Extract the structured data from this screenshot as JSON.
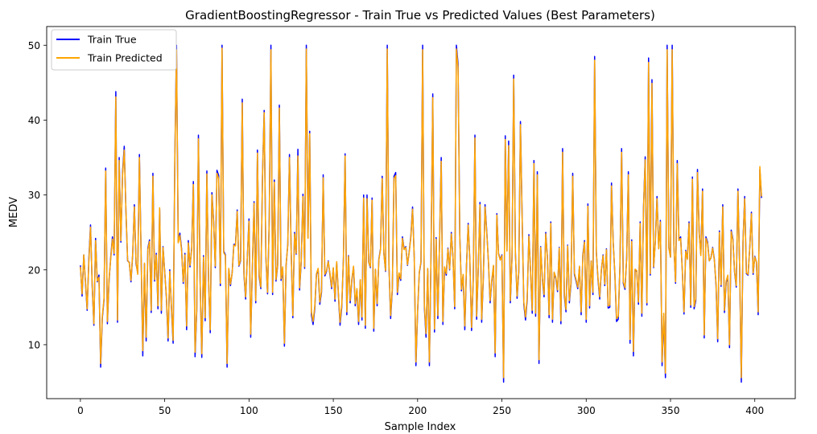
{
  "chart_data": {
    "type": "line",
    "title": "GradientBoostingRegressor - Train True vs Predicted Values (Best Parameters)",
    "xlabel": "Sample Index",
    "ylabel": "MEDV",
    "xlim": [
      -20,
      424
    ],
    "ylim": [
      2.8,
      52.5
    ],
    "xticks": [
      0,
      50,
      100,
      150,
      200,
      250,
      300,
      350,
      400
    ],
    "yticks": [
      10,
      20,
      30,
      40,
      50
    ],
    "grid": false,
    "legend_position": "top-left",
    "series": [
      {
        "name": "Train True",
        "color": "#0000ff",
        "values": [
          20.6,
          16.5,
          22.0,
          18.3,
          14.6,
          21.4,
          26.0,
          17.8,
          12.6,
          24.2,
          18.4,
          19.3,
          7.0,
          13.6,
          16.0,
          33.6,
          12.8,
          18.6,
          21.7,
          24.4,
          22.0,
          43.8,
          13.0,
          35.0,
          23.7,
          33.0,
          36.5,
          27.9,
          21.2,
          21.0,
          18.4,
          22.0,
          28.7,
          20.8,
          19.6,
          35.4,
          22.0,
          8.5,
          20.8,
          10.5,
          22.9,
          24.0,
          14.3,
          32.9,
          18.5,
          22.2,
          14.8,
          28.1,
          14.2,
          23.1,
          19.8,
          16.3,
          10.5,
          20.0,
          14.8,
          10.2,
          34.9,
          50.0,
          23.8,
          24.9,
          22.8,
          18.2,
          22.2,
          12.0,
          23.9,
          20.4,
          22.9,
          31.8,
          8.4,
          14.5,
          38.0,
          18.5,
          8.3,
          21.9,
          13.2,
          33.2,
          18.7,
          11.6,
          30.3,
          26.6,
          20.3,
          33.3,
          32.6,
          17.9,
          50.0,
          22.5,
          22.0,
          7.0,
          20.1,
          17.9,
          19.6,
          23.4,
          23.4,
          28.0,
          20.5,
          21.2,
          42.8,
          19.4,
          16.1,
          21.7,
          26.8,
          11.0,
          20.3,
          29.1,
          15.6,
          36.0,
          19.1,
          17.5,
          32.6,
          41.3,
          21.7,
          16.8,
          26.7,
          50.0,
          16.7,
          32.0,
          18.5,
          20.6,
          42.0,
          18.6,
          20.2,
          9.8,
          20.6,
          23.4,
          35.4,
          22.6,
          13.6,
          25.0,
          22.1,
          36.1,
          17.3,
          21.2,
          30.1,
          20.2,
          50.0,
          24.3,
          38.5,
          14.0,
          12.7,
          14.8,
          19.4,
          20.1,
          15.4,
          17.0,
          32.7,
          19.2,
          19.8,
          21.2,
          19.4,
          17.5,
          20.2,
          15.8,
          21.0,
          16.8,
          12.6,
          15.0,
          21.5,
          35.5,
          14.0,
          21.9,
          15.6,
          18.6,
          20.4,
          15.2,
          17.3,
          12.7,
          18.6,
          13.3,
          30.0,
          12.2,
          30.0,
          21.0,
          20.3,
          29.6,
          11.8,
          20.0,
          15.2,
          21.4,
          22.8,
          32.5,
          22.2,
          19.8,
          50.0,
          20.6,
          13.5,
          17.4,
          32.5,
          33.0,
          16.7,
          19.4,
          18.6,
          24.4,
          22.8,
          23.1,
          20.6,
          22.4,
          24.5,
          28.4,
          21.7,
          7.2,
          14.4,
          19.6,
          21.0,
          50.0,
          15.1,
          11.0,
          20.1,
          7.2,
          22.8,
          43.5,
          11.7,
          24.3,
          13.5,
          23.6,
          35.0,
          12.7,
          20.3,
          19.3,
          22.9,
          20.0,
          25.0,
          21.6,
          14.8,
          50.0,
          47.5,
          24.7,
          17.2,
          19.3,
          12.0,
          20.6,
          26.2,
          21.2,
          11.9,
          18.6,
          38.0,
          13.4,
          20.3,
          29.0,
          13.0,
          19.0,
          28.7,
          25.2,
          21.1,
          15.6,
          18.5,
          20.5,
          8.4,
          27.5,
          22.2,
          21.4,
          22.0,
          5.0,
          37.9,
          22.6,
          37.2,
          15.6,
          21.7,
          46.0,
          22.3,
          16.2,
          19.7,
          39.8,
          27.1,
          15.4,
          13.3,
          16.0,
          24.7,
          19.8,
          14.2,
          34.6,
          13.8,
          33.1,
          7.5,
          23.1,
          18.7,
          16.4,
          25.0,
          21.7,
          13.6,
          26.4,
          13.0,
          19.6,
          18.8,
          17.1,
          23.0,
          12.8,
          36.2,
          16.6,
          14.4,
          23.3,
          15.6,
          18.2,
          32.9,
          19.4,
          18.5,
          17.5,
          20.4,
          14.0,
          22.0,
          23.9,
          13.0,
          28.8,
          14.9,
          21.2,
          16.7,
          48.5,
          22.4,
          18.7,
          16.1,
          20.0,
          22.0,
          17.9,
          22.8,
          14.9,
          15.0,
          31.6,
          23.8,
          19.4,
          13.1,
          13.4,
          20.4,
          36.2,
          18.2,
          17.4,
          21.6,
          33.1,
          10.2,
          24.0,
          8.5,
          20.0,
          19.8,
          15.4,
          26.4,
          13.8,
          28.4,
          35.1,
          15.3,
          48.3,
          19.3,
          45.4,
          20.3,
          23.9,
          29.8,
          22.9,
          26.6,
          7.2,
          13.9,
          5.6,
          50.0,
          23.0,
          21.7,
          50.0,
          23.4,
          18.2,
          34.6,
          24.1,
          24.4,
          19.9,
          14.1,
          22.6,
          21.5,
          26.4,
          15.0,
          32.4,
          14.8,
          15.9,
          33.4,
          25.1,
          22.0,
          30.8,
          10.9,
          24.4,
          23.7,
          21.2,
          21.6,
          23.0,
          21.4,
          18.0,
          10.4,
          25.2,
          17.8,
          28.7,
          14.3,
          18.3,
          19.1,
          9.6,
          25.3,
          24.1,
          19.7,
          17.7,
          30.8,
          20.4,
          5.0,
          23.8,
          29.8,
          19.5,
          19.3,
          23.0,
          27.7,
          19.4,
          21.8,
          21.0,
          14.0,
          33.4,
          29.6
        ],
        "line_width": 1.5
      },
      {
        "name": "Train Predicted",
        "color": "#ffa500",
        "values": [
          20.4,
          16.8,
          22.0,
          18.5,
          14.8,
          21.0,
          25.7,
          18.0,
          12.8,
          23.9,
          18.5,
          19.0,
          7.5,
          13.8,
          16.2,
          33.2,
          13.1,
          18.8,
          21.5,
          24.1,
          22.2,
          43.1,
          13.3,
          34.6,
          23.9,
          32.6,
          36.0,
          28.0,
          21.3,
          20.9,
          18.6,
          22.2,
          28.4,
          21.0,
          19.4,
          35.0,
          22.1,
          9.2,
          20.9,
          11.0,
          22.7,
          23.8,
          14.6,
          32.5,
          18.7,
          22.0,
          15.2,
          28.3,
          14.6,
          23.0,
          19.7,
          16.5,
          10.9,
          19.8,
          15.1,
          10.6,
          34.4,
          49.4,
          23.6,
          24.6,
          22.6,
          18.4,
          22.0,
          12.5,
          23.6,
          20.6,
          22.7,
          31.4,
          9.0,
          14.8,
          37.5,
          18.7,
          8.8,
          21.7,
          13.6,
          32.8,
          18.9,
          12.0,
          30.0,
          26.4,
          20.5,
          32.9,
          32.2,
          18.2,
          49.6,
          22.3,
          21.9,
          7.5,
          20.2,
          18.1,
          19.5,
          23.3,
          23.2,
          27.8,
          20.6,
          21.3,
          42.3,
          19.6,
          16.4,
          21.6,
          26.5,
          11.4,
          20.4,
          28.9,
          15.9,
          35.6,
          19.3,
          17.7,
          32.3,
          41.0,
          21.8,
          17.0,
          26.5,
          49.4,
          17.0,
          31.7,
          18.7,
          20.7,
          41.6,
          18.8,
          20.4,
          10.2,
          20.7,
          23.3,
          35.0,
          22.5,
          13.9,
          24.8,
          22.2,
          35.2,
          17.6,
          21.3,
          29.8,
          20.4,
          49.5,
          24.2,
          38.2,
          14.4,
          13.1,
          15.1,
          19.5,
          20.2,
          15.7,
          17.2,
          32.3,
          19.4,
          19.9,
          21.1,
          19.6,
          17.7,
          20.3,
          16.1,
          21.1,
          17.0,
          13.0,
          15.3,
          21.4,
          35.2,
          14.4,
          21.8,
          15.9,
          18.8,
          20.5,
          15.5,
          17.5,
          13.1,
          18.7,
          13.7,
          29.6,
          12.6,
          29.5,
          21.0,
          20.4,
          29.3,
          12.2,
          20.1,
          15.5,
          21.3,
          22.7,
          32.2,
          22.1,
          19.9,
          49.5,
          20.7,
          13.9,
          17.6,
          32.2,
          32.6,
          17.0,
          19.6,
          18.8,
          24.2,
          22.7,
          23.0,
          20.7,
          22.3,
          24.3,
          28.1,
          21.7,
          7.7,
          14.7,
          19.7,
          21.1,
          49.4,
          15.4,
          11.5,
          20.2,
          7.7,
          22.7,
          43.0,
          12.1,
          24.1,
          13.9,
          23.5,
          34.5,
          13.1,
          20.4,
          19.5,
          22.8,
          20.1,
          24.8,
          21.6,
          15.1,
          49.5,
          47.0,
          24.5,
          17.4,
          19.4,
          12.5,
          20.7,
          26.0,
          21.2,
          12.3,
          18.8,
          37.6,
          13.8,
          20.4,
          28.7,
          13.4,
          19.2,
          28.4,
          25.0,
          21.2,
          15.9,
          18.7,
          20.6,
          8.9,
          27.3,
          22.1,
          21.3,
          21.9,
          5.6,
          37.4,
          22.5,
          36.6,
          15.9,
          21.7,
          45.5,
          22.2,
          16.5,
          19.8,
          39.4,
          26.9,
          15.7,
          13.7,
          16.3,
          24.5,
          19.9,
          14.6,
          34.2,
          14.2,
          32.7,
          8.0,
          23.0,
          18.9,
          16.7,
          24.8,
          21.7,
          14.0,
          26.2,
          13.4,
          19.7,
          19.0,
          17.3,
          22.9,
          13.2,
          35.7,
          16.9,
          14.7,
          23.2,
          15.9,
          18.4,
          32.5,
          19.6,
          18.7,
          17.7,
          20.5,
          14.4,
          21.9,
          23.7,
          13.4,
          28.5,
          15.2,
          21.2,
          17.0,
          48.0,
          22.3,
          18.9,
          16.4,
          20.1,
          21.9,
          18.1,
          22.7,
          15.2,
          15.3,
          31.2,
          23.6,
          19.6,
          13.5,
          13.8,
          20.5,
          35.7,
          18.4,
          17.6,
          21.5,
          32.7,
          10.7,
          23.8,
          9.1,
          20.1,
          19.9,
          15.7,
          26.2,
          14.2,
          28.2,
          34.7,
          15.6,
          47.7,
          19.5,
          44.9,
          20.4,
          23.7,
          29.5,
          22.8,
          26.4,
          7.7,
          14.2,
          6.2,
          49.4,
          22.9,
          21.7,
          49.4,
          23.3,
          18.4,
          34.2,
          23.9,
          24.2,
          20.0,
          14.4,
          22.5,
          21.4,
          26.2,
          15.3,
          32.1,
          15.1,
          16.2,
          33.0,
          24.9,
          21.9,
          30.5,
          11.3,
          24.2,
          23.5,
          21.2,
          21.6,
          22.9,
          21.3,
          18.2,
          10.8,
          25.0,
          18.0,
          28.4,
          14.6,
          18.5,
          19.3,
          10.0,
          25.1,
          23.9,
          19.8,
          17.9,
          30.5,
          20.5,
          5.6,
          23.6,
          29.5,
          19.6,
          19.4,
          22.9,
          27.5,
          19.6,
          21.7,
          21.0,
          14.4,
          33.8,
          29.8
        ],
        "line_width": 1.5
      }
    ]
  }
}
